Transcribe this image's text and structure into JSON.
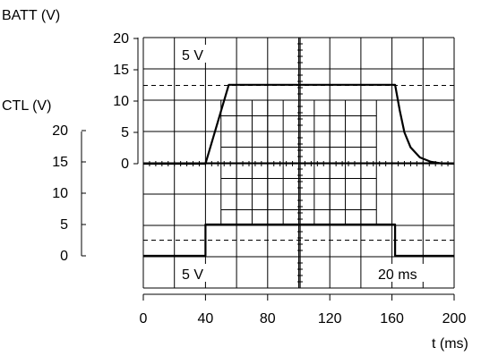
{
  "chart_data": {
    "type": "line",
    "title": "",
    "x": {
      "label": "t (ms)",
      "range": [
        0,
        200
      ],
      "ticks": [
        0,
        40,
        80,
        120,
        160,
        200
      ],
      "tick_labels": [
        "0",
        "40",
        "80",
        "120",
        "160",
        "200"
      ]
    },
    "y_batt": {
      "label": "BATT (V)",
      "range": [
        0,
        20
      ],
      "ticks": [
        0,
        5,
        10,
        15,
        20
      ],
      "tick_labels": [
        "0",
        "5",
        "10",
        "15",
        "20"
      ]
    },
    "y_ctl": {
      "label": "CTL (V)",
      "range": [
        0,
        20
      ],
      "ticks": [
        0,
        5,
        10,
        15,
        20
      ],
      "tick_labels": [
        "0",
        "5",
        "10",
        "15",
        "20"
      ]
    },
    "annotations": {
      "batt_scale": "5 V",
      "ctl_scale": "5 V",
      "time_scale": "20 ms"
    },
    "reference_levels": {
      "batt": 12.5,
      "ctl": 2.5
    },
    "series": [
      {
        "axis": "batt",
        "x": [
          0,
          40,
          55,
          162,
          165,
          168,
          172,
          178,
          185,
          192,
          200
        ],
        "y": [
          0,
          0,
          12.6,
          12.6,
          8.5,
          5.0,
          2.6,
          1.0,
          0.3,
          0.05,
          0
        ]
      },
      {
        "axis": "ctl",
        "x": [
          0,
          40,
          40,
          162,
          162,
          200
        ],
        "y": [
          0,
          0,
          5,
          5,
          0,
          0
        ]
      }
    ]
  }
}
